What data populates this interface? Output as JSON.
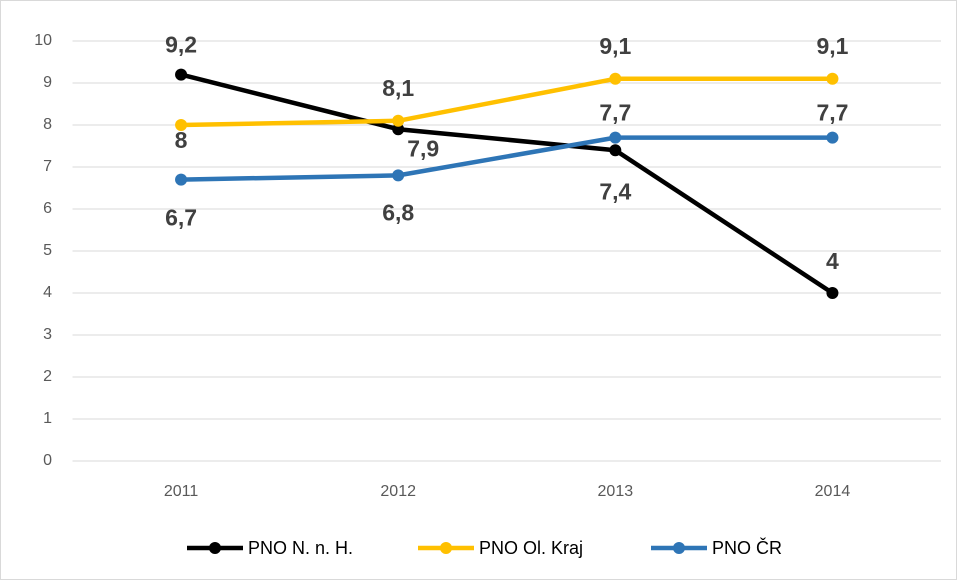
{
  "chart_data": {
    "type": "line",
    "categories": [
      "2011",
      "2012",
      "2013",
      "2014"
    ],
    "series": [
      {
        "name": "PNO N. n. H.",
        "color": "#000000",
        "values": [
          9.2,
          7.9,
          7.4,
          4
        ],
        "value_labels": [
          "9,2",
          "7,9",
          "7,4",
          "4"
        ]
      },
      {
        "name": "PNO Ol. Kraj",
        "color": "#ffc000",
        "values": [
          8,
          8.1,
          9.1,
          9.1
        ],
        "value_labels": [
          "8",
          "8,1",
          "9,1",
          "9,1"
        ]
      },
      {
        "name": "PNO ČR",
        "color": "#2e75b6",
        "values": [
          6.7,
          6.8,
          7.7,
          7.7
        ],
        "value_labels": [
          "6,7",
          "6,8",
          "7,7",
          "7,7"
        ]
      }
    ],
    "ylim": [
      0,
      10
    ],
    "yticks": [
      0,
      1,
      2,
      3,
      4,
      5,
      6,
      7,
      8,
      9,
      10
    ],
    "grid": true,
    "legend": "bottom"
  }
}
